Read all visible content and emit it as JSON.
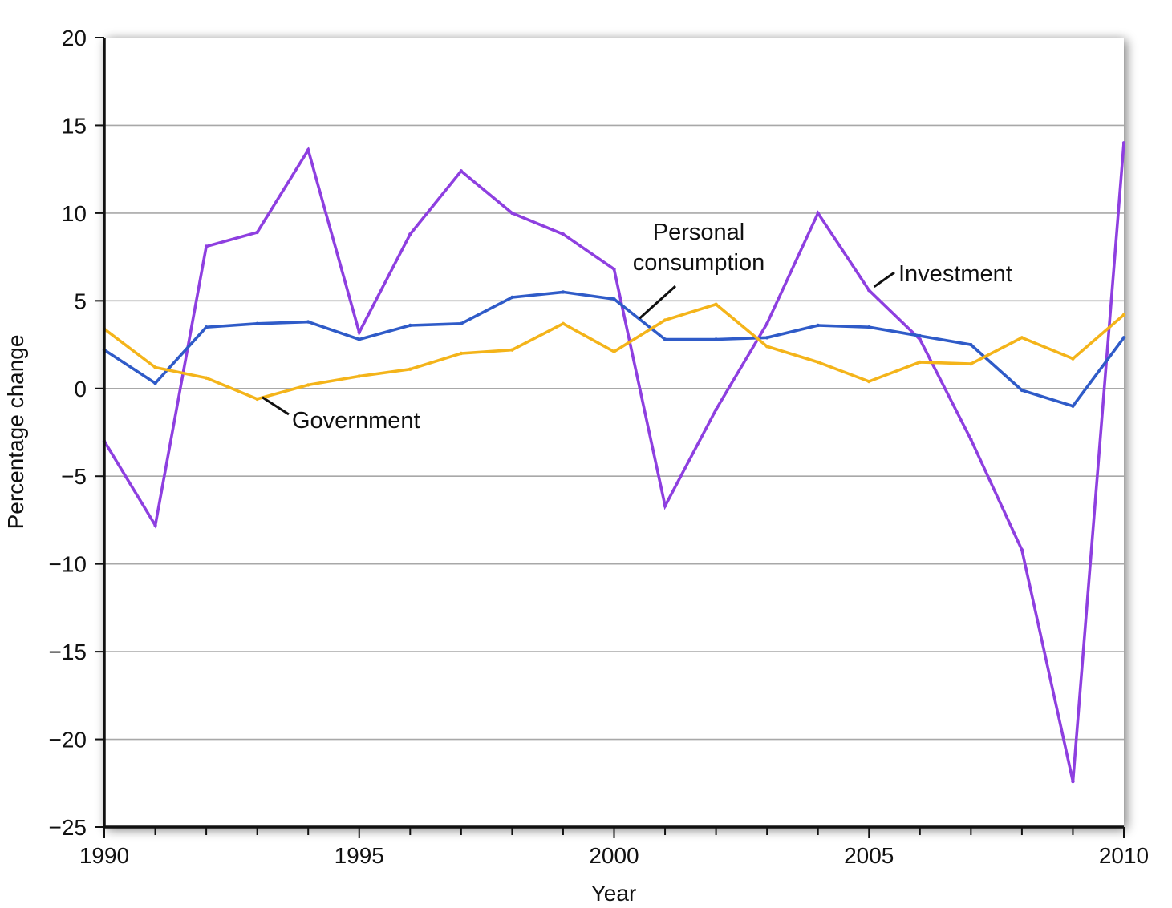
{
  "chart_data": {
    "type": "line",
    "xlabel": "Year",
    "ylabel": "Percentage change",
    "xlim": [
      1990,
      2010
    ],
    "ylim": [
      -25,
      20
    ],
    "x_ticks": [
      1990,
      1995,
      2000,
      2005,
      2010
    ],
    "y_ticks": [
      20,
      15,
      10,
      5,
      0,
      -5,
      -10,
      -15,
      -20,
      -25
    ],
    "y_tick_labels": [
      "20",
      "15",
      "10",
      "5",
      "0",
      "−5",
      "−10",
      "−15",
      "−20",
      "−25"
    ],
    "grid": "horizontal",
    "x": [
      1990,
      1991,
      1992,
      1993,
      1994,
      1995,
      1996,
      1997,
      1998,
      1999,
      2000,
      2001,
      2002,
      2003,
      2004,
      2005,
      2006,
      2007,
      2008,
      2009,
      2010
    ],
    "series": [
      {
        "name": "Investment",
        "color": "#8e3fe0",
        "values": [
          -3.0,
          -7.8,
          8.1,
          8.9,
          13.6,
          3.2,
          8.8,
          12.4,
          10.0,
          8.8,
          6.8,
          -6.7,
          -1.2,
          3.7,
          10.0,
          5.6,
          2.8,
          -2.9,
          -9.2,
          -22.4,
          14.0
        ]
      },
      {
        "name": "Personal consumption",
        "color": "#2f5bc8",
        "values": [
          2.2,
          0.3,
          3.5,
          3.7,
          3.8,
          2.8,
          3.6,
          3.7,
          5.2,
          5.5,
          5.1,
          2.8,
          2.8,
          2.9,
          3.6,
          3.5,
          3.0,
          2.5,
          -0.1,
          -1.0,
          2.9
        ]
      },
      {
        "name": "Government",
        "color": "#f4b41a",
        "values": [
          3.4,
          1.2,
          0.6,
          -0.6,
          0.2,
          0.7,
          1.1,
          2.0,
          2.2,
          3.7,
          2.1,
          3.9,
          4.8,
          2.4,
          1.5,
          0.4,
          1.5,
          1.4,
          2.9,
          1.7,
          4.2
        ]
      }
    ],
    "annotations": [
      {
        "series": "Personal consumption",
        "lines": [
          "Personal",
          "consumption"
        ],
        "anchor_x": 2000.5,
        "anchor_y": 4.0
      },
      {
        "series": "Investment",
        "lines": [
          "Investment"
        ],
        "anchor_x": 2005.1,
        "anchor_y": 5.8
      },
      {
        "series": "Government",
        "lines": [
          "Government"
        ],
        "anchor_x": 1993.1,
        "anchor_y": -0.5
      }
    ]
  }
}
